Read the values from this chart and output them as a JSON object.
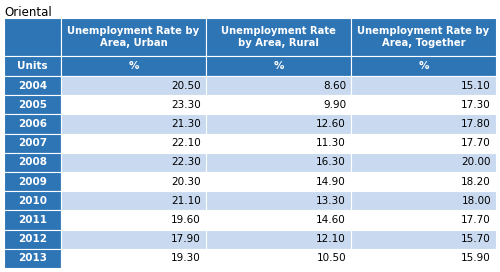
{
  "title": "Oriental",
  "col_headers": [
    "Unemployment Rate by\nArea, Urban",
    "Unemployment Rate\nby Area, Rural",
    "Unemployment Rate by\nArea, Together"
  ],
  "units_row": [
    "Units",
    "%",
    "%",
    "%"
  ],
  "row_labels": [
    "2004",
    "2005",
    "2006",
    "2007",
    "2008",
    "2009",
    "2010",
    "2011",
    "2012",
    "2013"
  ],
  "data": [
    [
      20.5,
      8.6,
      15.1
    ],
    [
      23.3,
      9.9,
      17.3
    ],
    [
      21.3,
      12.6,
      17.8
    ],
    [
      22.1,
      11.3,
      17.7
    ],
    [
      22.3,
      16.3,
      20.0
    ],
    [
      20.3,
      14.9,
      18.2
    ],
    [
      21.1,
      13.3,
      18.0
    ],
    [
      19.6,
      14.6,
      17.7
    ],
    [
      17.9,
      12.1,
      15.7
    ],
    [
      19.3,
      10.5,
      15.9
    ]
  ],
  "header_bg": "#2E75B6",
  "header_text": "#FFFFFF",
  "units_bg": "#2E75B6",
  "units_text": "#FFFFFF",
  "row_label_bg": "#2E75B6",
  "row_label_text": "#FFFFFF",
  "row_bg_light": "#C9DAF0",
  "row_bg_white": "#FFFFFF",
  "border_color": "#FFFFFF",
  "title_color": "#000000",
  "title_fontsize": 8.5,
  "header_fontsize": 7.2,
  "cell_fontsize": 7.5
}
